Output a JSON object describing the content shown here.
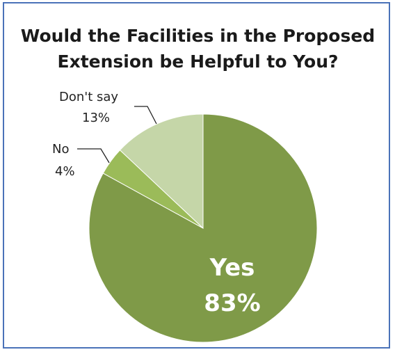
{
  "chart_data": {
    "type": "pie",
    "title_line1": "Would the Facilities in the Proposed",
    "title_line2": "Extension be Helpful to You?",
    "slices": [
      {
        "label": "Yes",
        "value": 83,
        "display": "83%",
        "color": "#7f9a48"
      },
      {
        "label": "No",
        "value": 4,
        "display": "4%",
        "color": "#9bbb59"
      },
      {
        "label": "Don't say",
        "value": 13,
        "display": "13%",
        "color": "#c5d6a8"
      }
    ]
  }
}
